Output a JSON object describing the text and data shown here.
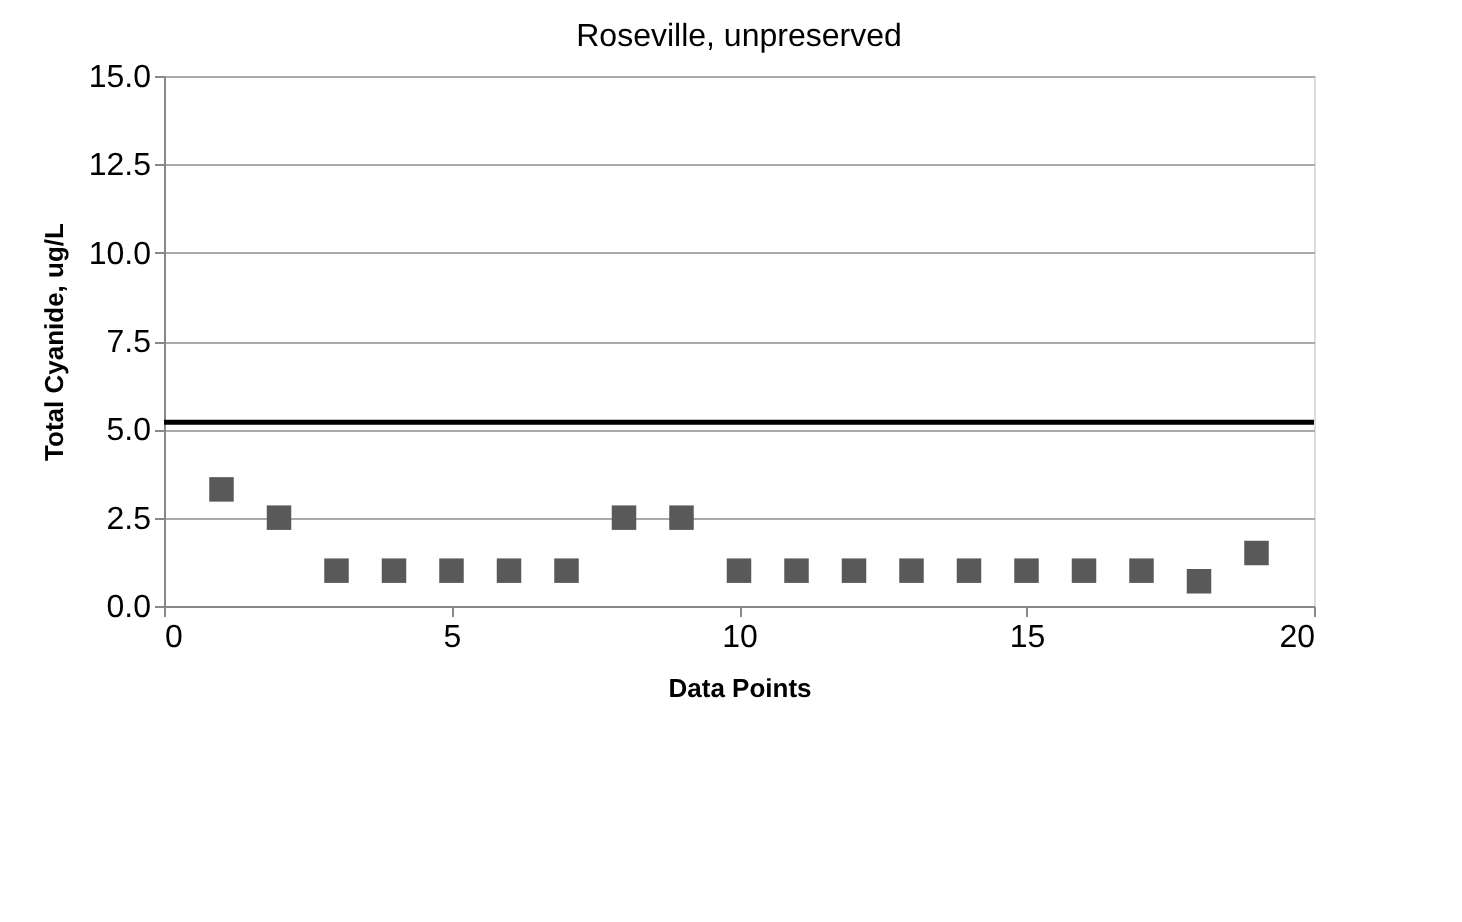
{
  "chart_data": {
    "type": "scatter",
    "title": "Roseville, unpreserved",
    "xlabel": "Data Points",
    "ylabel": "Total Cyanide, ug/L",
    "x": [
      1,
      2,
      3,
      4,
      5,
      6,
      7,
      8,
      9,
      10,
      11,
      12,
      13,
      14,
      15,
      16,
      17,
      18,
      19
    ],
    "series": [
      {
        "color": "#595959",
        "values": [
          3.3,
          2.5,
          1.0,
          1.0,
          1.0,
          1.0,
          1.0,
          2.5,
          2.5,
          1.0,
          1.0,
          1.0,
          1.0,
          1.0,
          1.0,
          1.0,
          1.0,
          0.7,
          1.5
        ]
      }
    ],
    "marker": "square",
    "grid": "y",
    "xlim": [
      0,
      20
    ],
    "xticks": [
      0,
      5,
      10,
      15,
      20
    ],
    "ylim": [
      0,
      15
    ],
    "yticks": [
      {
        "value": 0,
        "label": "0.0"
      },
      {
        "value": 2.5,
        "label": "2.5"
      },
      {
        "value": 5,
        "label": "5.0"
      },
      {
        "value": 7.5,
        "label": "7.5"
      },
      {
        "value": 10,
        "label": "10.0"
      },
      {
        "value": 12.5,
        "label": "12.5"
      },
      {
        "value": 15,
        "label": "15.0"
      }
    ],
    "ref_lines": [
      {
        "axis": "y",
        "value": 5.2,
        "color": "#000000"
      }
    ]
  }
}
